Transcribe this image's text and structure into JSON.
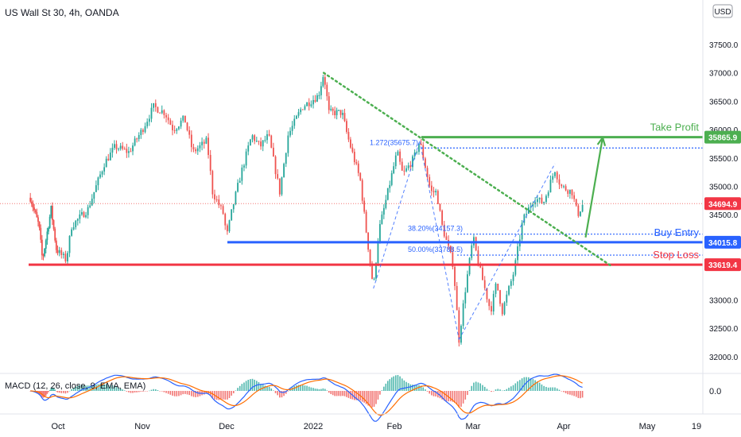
{
  "header": {
    "symbol_title": "US Wall St 30, 4h, OANDA",
    "currency_button": "USD"
  },
  "price_axis": {
    "ticks": [
      "37500.0",
      "37000.0",
      "36500.0",
      "36000.0",
      "35500.0",
      "35000.0",
      "34500.0",
      "33000.0",
      "32500.0",
      "32000.0"
    ],
    "badges": [
      {
        "value": "35865.9",
        "color": "#4caf50"
      },
      {
        "value": "34694.9",
        "color": "#f23645"
      },
      {
        "value": "34015.8",
        "color": "#2962ff"
      },
      {
        "value": "33619.4",
        "color": "#f23645"
      }
    ]
  },
  "time_axis": [
    "Oct",
    "Nov",
    "Dec",
    "2022",
    "Feb",
    "Mar",
    "Apr",
    "May",
    "19"
  ],
  "annotations": {
    "take_profit": "Take Profit",
    "buy_entry": "Buy Entry",
    "stop_loss": "Stop Loss",
    "fib_1272": "1.272(35675.7)",
    "fib_382": "38.20%(34157.3)",
    "fib_50": "50.00%(33788.5)"
  },
  "macd": {
    "label": "MACD (12, 26, close, 9, EMA, EMA)",
    "axis_value": "0.0"
  },
  "colors": {
    "up": "#26a69a",
    "down": "#ef5350",
    "take_profit": "#4caf50",
    "buy_entry": "#2962ff",
    "stop_loss": "#f23645",
    "trendline": "#4caf50",
    "fib": "#2962ff",
    "macd_line": "#2962ff",
    "signal_line": "#ff6d00"
  },
  "chart_data": {
    "type": "candlestick",
    "title": "US Wall St 30, 4h, OANDA",
    "x_labels": [
      "Oct",
      "Nov",
      "Dec",
      "2022",
      "Feb",
      "Mar",
      "Apr",
      "May",
      "19"
    ],
    "ylim": [
      31800,
      38200
    ],
    "last_price": 34694.9,
    "levels": {
      "take_profit": 35865.9,
      "buy_entry": 34015.8,
      "stop_loss": 33619.4,
      "fib_1272": 35675.7,
      "fib_382": 34157.3,
      "fib_50": 33788.5
    },
    "price_path": [
      [
        "2021-09-15",
        34800
      ],
      [
        "2021-09-20",
        34300
      ],
      [
        "2021-09-22",
        33700
      ],
      [
        "2021-09-27",
        34600
      ],
      [
        "2021-09-30",
        33900
      ],
      [
        "2021-10-04",
        33700
      ],
      [
        "2021-10-06",
        34300
      ],
      [
        "2021-10-12",
        34600
      ],
      [
        "2021-10-18",
        35400
      ],
      [
        "2021-10-22",
        35700
      ],
      [
        "2021-10-27",
        35600
      ],
      [
        "2021-11-01",
        36000
      ],
      [
        "2021-11-05",
        36400
      ],
      [
        "2021-11-09",
        36300
      ],
      [
        "2021-11-12",
        36000
      ],
      [
        "2021-11-16",
        36200
      ],
      [
        "2021-11-19",
        35600
      ],
      [
        "2021-11-24",
        35800
      ],
      [
        "2021-11-26",
        34900
      ],
      [
        "2021-11-30",
        34500
      ],
      [
        "2021-12-01",
        34100
      ],
      [
        "2021-12-03",
        34600
      ],
      [
        "2021-12-06",
        35200
      ],
      [
        "2021-12-10",
        35900
      ],
      [
        "2021-12-13",
        35700
      ],
      [
        "2021-12-16",
        35900
      ],
      [
        "2021-12-20",
        34900
      ],
      [
        "2021-12-23",
        35900
      ],
      [
        "2021-12-28",
        36400
      ],
      [
        "2022-01-03",
        36600
      ],
      [
        "2022-01-05",
        37000
      ],
      [
        "2022-01-07",
        36300
      ],
      [
        "2022-01-12",
        36300
      ],
      [
        "2022-01-14",
        35900
      ],
      [
        "2022-01-19",
        35100
      ],
      [
        "2022-01-21",
        34300
      ],
      [
        "2022-01-24",
        33200
      ],
      [
        "2022-01-26",
        34200
      ],
      [
        "2022-01-28",
        34600
      ],
      [
        "2022-02-02",
        35600
      ],
      [
        "2022-02-04",
        35200
      ],
      [
        "2022-02-08",
        35500
      ],
      [
        "2022-02-10",
        35800
      ],
      [
        "2022-02-14",
        34900
      ],
      [
        "2022-02-16",
        34900
      ],
      [
        "2022-02-18",
        34300
      ],
      [
        "2022-02-22",
        33600
      ],
      [
        "2022-02-24",
        32300
      ],
      [
        "2022-02-26",
        33100
      ],
      [
        "2022-03-01",
        34100
      ],
      [
        "2022-03-03",
        33600
      ],
      [
        "2022-03-07",
        32800
      ],
      [
        "2022-03-09",
        33300
      ],
      [
        "2022-03-11",
        32800
      ],
      [
        "2022-03-15",
        33500
      ],
      [
        "2022-03-18",
        34400
      ],
      [
        "2022-03-22",
        34800
      ],
      [
        "2022-03-25",
        34700
      ],
      [
        "2022-03-29",
        35300
      ],
      [
        "2022-03-31",
        35000
      ],
      [
        "2022-04-04",
        34900
      ],
      [
        "2022-04-06",
        34500
      ],
      [
        "2022-04-08",
        34694.9
      ]
    ],
    "projection": [
      [
        "2022-04-08",
        34100
      ],
      [
        "2022-04-15",
        35860
      ]
    ]
  }
}
